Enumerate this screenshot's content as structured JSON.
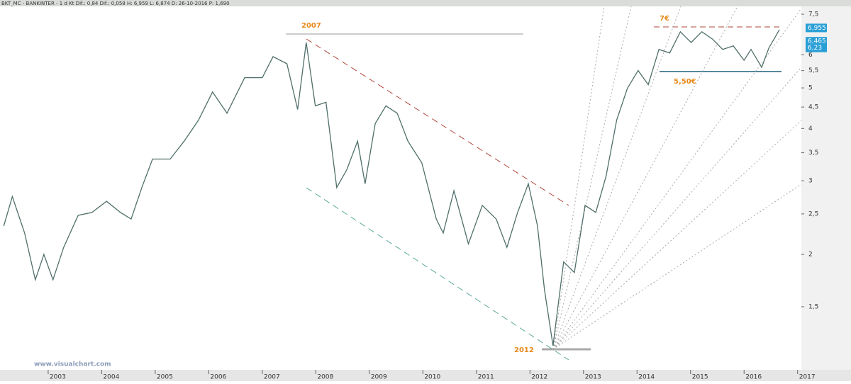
{
  "header": "BKT_MC - BANKINTER - 1 d Kt Dif.: 0,84 Dif.: 0,058 H: 6,959 L: 6,874 D: 26-10-2016 P: 1,690",
  "chart_data": {
    "type": "line",
    "log_scale": true,
    "x": [
      2002.17,
      2002.33,
      2002.56,
      2002.76,
      2002.92,
      2003.09,
      2003.29,
      2003.56,
      2003.82,
      2004.09,
      2004.35,
      2004.55,
      2004.75,
      2004.95,
      2005.28,
      2005.54,
      2005.81,
      2006.07,
      2006.34,
      2006.67,
      2007.0,
      2007.2,
      2007.46,
      2007.66,
      2007.82,
      2007.99,
      2008.19,
      2008.39,
      2008.58,
      2008.78,
      2008.92,
      2009.11,
      2009.31,
      2009.52,
      2009.72,
      2009.98,
      2010.25,
      2010.38,
      2010.58,
      2010.85,
      2011.11,
      2011.37,
      2011.57,
      2011.77,
      2011.97,
      2012.14,
      2012.27,
      2012.43,
      2012.63,
      2012.83,
      2013.03,
      2013.23,
      2013.42,
      2013.62,
      2013.82,
      2014.02,
      2014.21,
      2014.41,
      2014.61,
      2014.81,
      2015.01,
      2015.21,
      2015.41,
      2015.6,
      2015.8,
      2016.0,
      2016.13,
      2016.33,
      2016.46,
      2016.66
    ],
    "series": [
      {
        "color": "#4f6f6a",
        "values": [
          2.34,
          2.75,
          2.25,
          1.74,
          2.0,
          1.74,
          2.08,
          2.48,
          2.52,
          2.68,
          2.52,
          2.43,
          2.89,
          3.38,
          3.38,
          3.73,
          4.19,
          4.89,
          4.35,
          5.29,
          5.29,
          5.94,
          5.71,
          4.44,
          6.42,
          4.53,
          4.62,
          2.89,
          3.19,
          3.73,
          2.95,
          4.11,
          4.53,
          4.35,
          3.73,
          3.31,
          2.43,
          2.25,
          2.84,
          2.12,
          2.62,
          2.43,
          2.08,
          2.52,
          2.95,
          2.34,
          1.65,
          1.21,
          1.92,
          1.81,
          2.62,
          2.52,
          3.07,
          4.19,
          4.99,
          5.5,
          5.09,
          6.18,
          6.06,
          6.81,
          6.42,
          6.81,
          6.54,
          6.18,
          6.3,
          5.82,
          6.18,
          5.6,
          6.22,
          6.89
        ]
      }
    ],
    "xlim": [
      2002.1,
      2017.07
    ],
    "xticks": [
      2003,
      2004,
      2005,
      2006,
      2007,
      2008,
      2009,
      2010,
      2011,
      2012,
      2013,
      2014,
      2015,
      2016,
      2017
    ],
    "ylim": [
      1.06,
      7.8
    ],
    "yticks": [
      {
        "value": 1.5,
        "label": "1,5"
      },
      2,
      {
        "value": 2.5,
        "label": "2,5"
      },
      3,
      {
        "value": 3.5,
        "label": "3,5"
      },
      4,
      {
        "value": 4.5,
        "label": "4,5"
      },
      5,
      {
        "value": 5.5,
        "label": "5,5"
      },
      6,
      {
        "value": 7.5,
        "label": "7,5"
      }
    ],
    "price_badges": [
      {
        "value": 6.955,
        "label": "6,955"
      },
      {
        "value": 6.465,
        "label": "6,465"
      },
      {
        "value": 6.23,
        "label": "6,23"
      }
    ],
    "annotations": [
      "2007",
      "7€",
      "5,50€",
      "2012"
    ],
    "watermark": "www.visualchart.com"
  }
}
